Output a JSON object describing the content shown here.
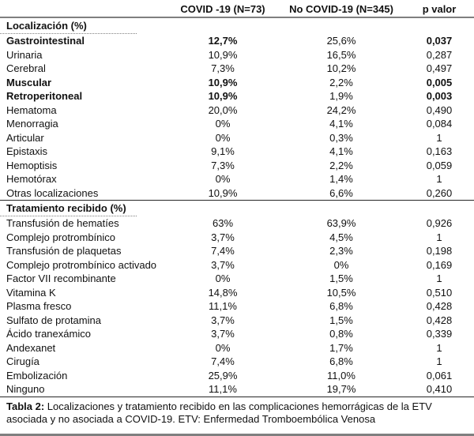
{
  "colors": {
    "rule_gray": "#7f7f7f",
    "divider_black": "#262626",
    "text": "#111111",
    "background": "#ffffff"
  },
  "table": {
    "columns": {
      "label": "",
      "covid": "COVID -19 (N=73)",
      "no_covid": "No COVID-19 (N=345)",
      "p": "p valor"
    },
    "sections": [
      {
        "title": "Localización (%)",
        "rows": [
          {
            "label": "Gastrointestinal",
            "covid": "12,7%",
            "no_covid": "25,6%",
            "p": "0,037",
            "bold": true
          },
          {
            "label": "Urinaria",
            "covid": "10,9%",
            "no_covid": "16,5%",
            "p": "0,287",
            "bold": false
          },
          {
            "label": "Cerebral",
            "covid": "7,3%",
            "no_covid": "10,2%",
            "p": "0,497",
            "bold": false
          },
          {
            "label": "Muscular",
            "covid": "10,9%",
            "no_covid": "2,2%",
            "p": "0,005",
            "bold": true
          },
          {
            "label": "Retroperitoneal",
            "covid": "10,9%",
            "no_covid": "1,9%",
            "p": "0,003",
            "bold": true
          },
          {
            "label": "Hematoma",
            "covid": "20,0%",
            "no_covid": "24,2%",
            "p": "0,490",
            "bold": false
          },
          {
            "label": "Menorragia",
            "covid": "0%",
            "no_covid": "4,1%",
            "p": "0,084",
            "bold": false
          },
          {
            "label": "Articular",
            "covid": "0%",
            "no_covid": "0,3%",
            "p": "1",
            "bold": false
          },
          {
            "label": "Epistaxis",
            "covid": "9,1%",
            "no_covid": "4,1%",
            "p": "0,163",
            "bold": false
          },
          {
            "label": "Hemoptisis",
            "covid": "7,3%",
            "no_covid": "2,2%",
            "p": "0,059",
            "bold": false
          },
          {
            "label": "Hemotórax",
            "covid": "0%",
            "no_covid": "1,4%",
            "p": "1",
            "bold": false
          },
          {
            "label": "Otras localizaciones",
            "covid": "10,9%",
            "no_covid": "6,6%",
            "p": "0,260",
            "bold": false
          }
        ]
      },
      {
        "title": "Tratamiento recibido (%)",
        "rows": [
          {
            "label": "Transfusión de hematíes",
            "covid": "63%",
            "no_covid": "63,9%",
            "p": "0,926",
            "bold": false
          },
          {
            "label": "Complejo protrombínico",
            "covid": "3,7%",
            "no_covid": "4,5%",
            "p": "1",
            "bold": false
          },
          {
            "label": "Transfusión de plaquetas",
            "covid": "7,4%",
            "no_covid": "2,3%",
            "p": "0,198",
            "bold": false
          },
          {
            "label": "Complejo protrombínico activado",
            "covid": "3,7%",
            "no_covid": "0%",
            "p": "0,169",
            "bold": false
          },
          {
            "label": "Factor VII recombinante",
            "covid": "0%",
            "no_covid": "1,5%",
            "p": "1",
            "bold": false
          },
          {
            "label": "Vitamina K",
            "covid": "14,8%",
            "no_covid": "10,5%",
            "p": "0,510",
            "bold": false
          },
          {
            "label": "Plasma fresco",
            "covid": "11,1%",
            "no_covid": "6,8%",
            "p": "0,428",
            "bold": false
          },
          {
            "label": "Sulfato de protamina",
            "covid": "3,7%",
            "no_covid": "1,5%",
            "p": "0,428",
            "bold": false
          },
          {
            "label": "Ácido tranexámico",
            "covid": "3,7%",
            "no_covid": "0,8%",
            "p": "0,339",
            "bold": false
          },
          {
            "label": "Andexanet",
            "covid": "0%",
            "no_covid": "1,7%",
            "p": "1",
            "bold": false
          },
          {
            "label": "Cirugía",
            "covid": "7,4%",
            "no_covid": "6,8%",
            "p": "1",
            "bold": false
          },
          {
            "label": "Embolización",
            "covid": "25,9%",
            "no_covid": "11,0%",
            "p": "0,061",
            "bold": false
          },
          {
            "label": "Ninguno",
            "covid": "11,1%",
            "no_covid": "19,7%",
            "p": "0,410",
            "bold": false
          }
        ]
      }
    ]
  },
  "caption": {
    "label": "Tabla 2:",
    "text": " Localizaciones y tratamiento recibido en las complicaciones hemorrágicas de la ETV asociada y no asociada a COVID-19. ETV: Enfermedad Tromboembólica Venosa"
  }
}
